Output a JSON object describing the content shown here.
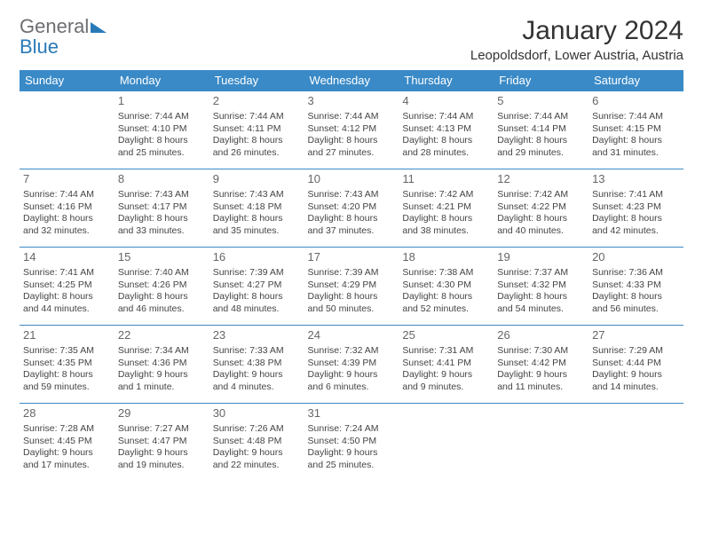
{
  "logo": {
    "text_gray": "General",
    "text_blue": "Blue"
  },
  "header": {
    "title": "January 2024",
    "location": "Leopoldsdorf, Lower Austria, Austria"
  },
  "colors": {
    "header_bg": "#3a8ac7",
    "header_text": "#ffffff",
    "row_border": "#3a8ac7",
    "logo_gray": "#6d6e71",
    "logo_blue": "#2a7ab8"
  },
  "days_of_week": [
    "Sunday",
    "Monday",
    "Tuesday",
    "Wednesday",
    "Thursday",
    "Friday",
    "Saturday"
  ],
  "weeks": [
    [
      null,
      {
        "num": "1",
        "l1": "Sunrise: 7:44 AM",
        "l2": "Sunset: 4:10 PM",
        "l3": "Daylight: 8 hours",
        "l4": "and 25 minutes."
      },
      {
        "num": "2",
        "l1": "Sunrise: 7:44 AM",
        "l2": "Sunset: 4:11 PM",
        "l3": "Daylight: 8 hours",
        "l4": "and 26 minutes."
      },
      {
        "num": "3",
        "l1": "Sunrise: 7:44 AM",
        "l2": "Sunset: 4:12 PM",
        "l3": "Daylight: 8 hours",
        "l4": "and 27 minutes."
      },
      {
        "num": "4",
        "l1": "Sunrise: 7:44 AM",
        "l2": "Sunset: 4:13 PM",
        "l3": "Daylight: 8 hours",
        "l4": "and 28 minutes."
      },
      {
        "num": "5",
        "l1": "Sunrise: 7:44 AM",
        "l2": "Sunset: 4:14 PM",
        "l3": "Daylight: 8 hours",
        "l4": "and 29 minutes."
      },
      {
        "num": "6",
        "l1": "Sunrise: 7:44 AM",
        "l2": "Sunset: 4:15 PM",
        "l3": "Daylight: 8 hours",
        "l4": "and 31 minutes."
      }
    ],
    [
      {
        "num": "7",
        "l1": "Sunrise: 7:44 AM",
        "l2": "Sunset: 4:16 PM",
        "l3": "Daylight: 8 hours",
        "l4": "and 32 minutes."
      },
      {
        "num": "8",
        "l1": "Sunrise: 7:43 AM",
        "l2": "Sunset: 4:17 PM",
        "l3": "Daylight: 8 hours",
        "l4": "and 33 minutes."
      },
      {
        "num": "9",
        "l1": "Sunrise: 7:43 AM",
        "l2": "Sunset: 4:18 PM",
        "l3": "Daylight: 8 hours",
        "l4": "and 35 minutes."
      },
      {
        "num": "10",
        "l1": "Sunrise: 7:43 AM",
        "l2": "Sunset: 4:20 PM",
        "l3": "Daylight: 8 hours",
        "l4": "and 37 minutes."
      },
      {
        "num": "11",
        "l1": "Sunrise: 7:42 AM",
        "l2": "Sunset: 4:21 PM",
        "l3": "Daylight: 8 hours",
        "l4": "and 38 minutes."
      },
      {
        "num": "12",
        "l1": "Sunrise: 7:42 AM",
        "l2": "Sunset: 4:22 PM",
        "l3": "Daylight: 8 hours",
        "l4": "and 40 minutes."
      },
      {
        "num": "13",
        "l1": "Sunrise: 7:41 AM",
        "l2": "Sunset: 4:23 PM",
        "l3": "Daylight: 8 hours",
        "l4": "and 42 minutes."
      }
    ],
    [
      {
        "num": "14",
        "l1": "Sunrise: 7:41 AM",
        "l2": "Sunset: 4:25 PM",
        "l3": "Daylight: 8 hours",
        "l4": "and 44 minutes."
      },
      {
        "num": "15",
        "l1": "Sunrise: 7:40 AM",
        "l2": "Sunset: 4:26 PM",
        "l3": "Daylight: 8 hours",
        "l4": "and 46 minutes."
      },
      {
        "num": "16",
        "l1": "Sunrise: 7:39 AM",
        "l2": "Sunset: 4:27 PM",
        "l3": "Daylight: 8 hours",
        "l4": "and 48 minutes."
      },
      {
        "num": "17",
        "l1": "Sunrise: 7:39 AM",
        "l2": "Sunset: 4:29 PM",
        "l3": "Daylight: 8 hours",
        "l4": "and 50 minutes."
      },
      {
        "num": "18",
        "l1": "Sunrise: 7:38 AM",
        "l2": "Sunset: 4:30 PM",
        "l3": "Daylight: 8 hours",
        "l4": "and 52 minutes."
      },
      {
        "num": "19",
        "l1": "Sunrise: 7:37 AM",
        "l2": "Sunset: 4:32 PM",
        "l3": "Daylight: 8 hours",
        "l4": "and 54 minutes."
      },
      {
        "num": "20",
        "l1": "Sunrise: 7:36 AM",
        "l2": "Sunset: 4:33 PM",
        "l3": "Daylight: 8 hours",
        "l4": "and 56 minutes."
      }
    ],
    [
      {
        "num": "21",
        "l1": "Sunrise: 7:35 AM",
        "l2": "Sunset: 4:35 PM",
        "l3": "Daylight: 8 hours",
        "l4": "and 59 minutes."
      },
      {
        "num": "22",
        "l1": "Sunrise: 7:34 AM",
        "l2": "Sunset: 4:36 PM",
        "l3": "Daylight: 9 hours",
        "l4": "and 1 minute."
      },
      {
        "num": "23",
        "l1": "Sunrise: 7:33 AM",
        "l2": "Sunset: 4:38 PM",
        "l3": "Daylight: 9 hours",
        "l4": "and 4 minutes."
      },
      {
        "num": "24",
        "l1": "Sunrise: 7:32 AM",
        "l2": "Sunset: 4:39 PM",
        "l3": "Daylight: 9 hours",
        "l4": "and 6 minutes."
      },
      {
        "num": "25",
        "l1": "Sunrise: 7:31 AM",
        "l2": "Sunset: 4:41 PM",
        "l3": "Daylight: 9 hours",
        "l4": "and 9 minutes."
      },
      {
        "num": "26",
        "l1": "Sunrise: 7:30 AM",
        "l2": "Sunset: 4:42 PM",
        "l3": "Daylight: 9 hours",
        "l4": "and 11 minutes."
      },
      {
        "num": "27",
        "l1": "Sunrise: 7:29 AM",
        "l2": "Sunset: 4:44 PM",
        "l3": "Daylight: 9 hours",
        "l4": "and 14 minutes."
      }
    ],
    [
      {
        "num": "28",
        "l1": "Sunrise: 7:28 AM",
        "l2": "Sunset: 4:45 PM",
        "l3": "Daylight: 9 hours",
        "l4": "and 17 minutes."
      },
      {
        "num": "29",
        "l1": "Sunrise: 7:27 AM",
        "l2": "Sunset: 4:47 PM",
        "l3": "Daylight: 9 hours",
        "l4": "and 19 minutes."
      },
      {
        "num": "30",
        "l1": "Sunrise: 7:26 AM",
        "l2": "Sunset: 4:48 PM",
        "l3": "Daylight: 9 hours",
        "l4": "and 22 minutes."
      },
      {
        "num": "31",
        "l1": "Sunrise: 7:24 AM",
        "l2": "Sunset: 4:50 PM",
        "l3": "Daylight: 9 hours",
        "l4": "and 25 minutes."
      },
      null,
      null,
      null
    ]
  ]
}
